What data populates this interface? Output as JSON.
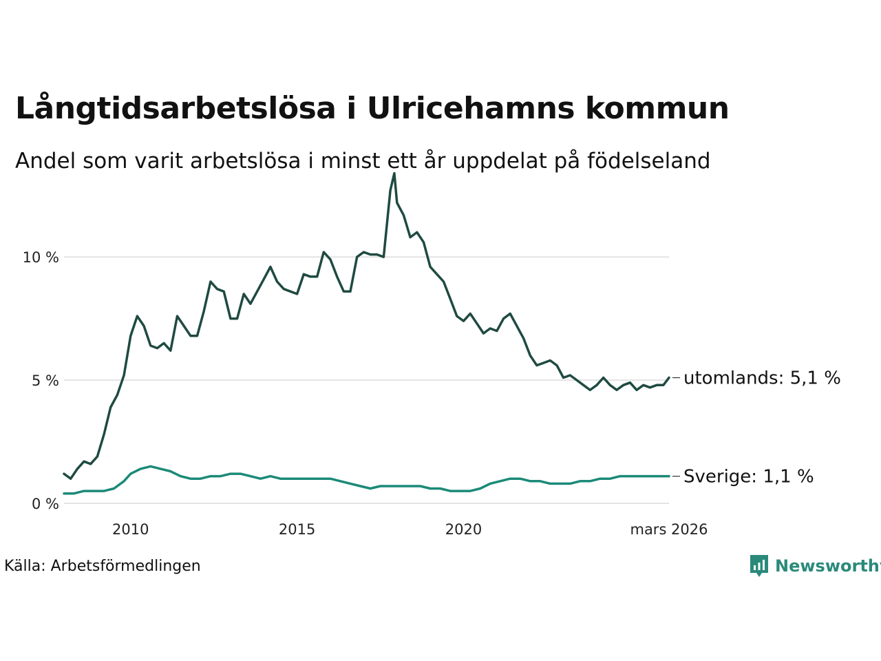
{
  "chart_data": {
    "type": "line",
    "title": "Långtidsarbetslösa i Ulricehamns kommun",
    "subtitle": "Andel som varit arbetslösa i minst ett år uppdelat på födelseland",
    "xlabel": "",
    "ylabel": "",
    "x_range": [
      2008.0,
      2026.17
    ],
    "ylim": [
      0,
      13.5
    ],
    "x_ticks": [
      {
        "value": 2010,
        "label": "2010"
      },
      {
        "value": 2015,
        "label": "2015"
      },
      {
        "value": 2020,
        "label": "2020"
      },
      {
        "value": 2026.17,
        "label": "mars 2026"
      }
    ],
    "y_ticks": [
      {
        "value": 0,
        "label": "0 %"
      },
      {
        "value": 5,
        "label": "5 %"
      },
      {
        "value": 10,
        "label": "10 %"
      }
    ],
    "grid": "horizontal",
    "series": [
      {
        "name": "utomlands",
        "end_label": "utomlands: 5,1 %",
        "color": "#1f4a41",
        "points": [
          [
            2008.0,
            1.2
          ],
          [
            2008.2,
            1.0
          ],
          [
            2008.4,
            1.4
          ],
          [
            2008.6,
            1.7
          ],
          [
            2008.8,
            1.6
          ],
          [
            2009.0,
            1.9
          ],
          [
            2009.2,
            2.8
          ],
          [
            2009.4,
            3.9
          ],
          [
            2009.6,
            4.4
          ],
          [
            2009.8,
            5.2
          ],
          [
            2010.0,
            6.8
          ],
          [
            2010.2,
            7.6
          ],
          [
            2010.4,
            7.2
          ],
          [
            2010.6,
            6.4
          ],
          [
            2010.8,
            6.3
          ],
          [
            2011.0,
            6.5
          ],
          [
            2011.2,
            6.2
          ],
          [
            2011.4,
            7.6
          ],
          [
            2011.6,
            7.2
          ],
          [
            2011.8,
            6.8
          ],
          [
            2012.0,
            6.8
          ],
          [
            2012.2,
            7.8
          ],
          [
            2012.4,
            9.0
          ],
          [
            2012.6,
            8.7
          ],
          [
            2012.8,
            8.6
          ],
          [
            2013.0,
            7.5
          ],
          [
            2013.2,
            7.5
          ],
          [
            2013.4,
            8.5
          ],
          [
            2013.6,
            8.1
          ],
          [
            2013.8,
            8.6
          ],
          [
            2014.0,
            9.1
          ],
          [
            2014.2,
            9.6
          ],
          [
            2014.4,
            9.0
          ],
          [
            2014.6,
            8.7
          ],
          [
            2014.8,
            8.6
          ],
          [
            2015.0,
            8.5
          ],
          [
            2015.2,
            9.3
          ],
          [
            2015.4,
            9.2
          ],
          [
            2015.6,
            9.2
          ],
          [
            2015.8,
            10.2
          ],
          [
            2016.0,
            9.9
          ],
          [
            2016.2,
            9.2
          ],
          [
            2016.4,
            8.6
          ],
          [
            2016.6,
            8.6
          ],
          [
            2016.8,
            10.0
          ],
          [
            2017.0,
            10.2
          ],
          [
            2017.2,
            10.1
          ],
          [
            2017.4,
            10.1
          ],
          [
            2017.6,
            10.0
          ],
          [
            2017.8,
            12.7
          ],
          [
            2017.92,
            13.4
          ],
          [
            2018.0,
            12.2
          ],
          [
            2018.2,
            11.7
          ],
          [
            2018.4,
            10.8
          ],
          [
            2018.6,
            11.0
          ],
          [
            2018.8,
            10.6
          ],
          [
            2019.0,
            9.6
          ],
          [
            2019.2,
            9.3
          ],
          [
            2019.4,
            9.0
          ],
          [
            2019.6,
            8.3
          ],
          [
            2019.8,
            7.6
          ],
          [
            2020.0,
            7.4
          ],
          [
            2020.2,
            7.7
          ],
          [
            2020.4,
            7.3
          ],
          [
            2020.6,
            6.9
          ],
          [
            2020.8,
            7.1
          ],
          [
            2021.0,
            7.0
          ],
          [
            2021.2,
            7.5
          ],
          [
            2021.4,
            7.7
          ],
          [
            2021.6,
            7.2
          ],
          [
            2021.8,
            6.7
          ],
          [
            2022.0,
            6.0
          ],
          [
            2022.2,
            5.6
          ],
          [
            2022.4,
            5.7
          ],
          [
            2022.6,
            5.8
          ],
          [
            2022.8,
            5.6
          ],
          [
            2023.0,
            5.1
          ],
          [
            2023.2,
            5.2
          ],
          [
            2023.4,
            5.0
          ],
          [
            2023.6,
            4.8
          ],
          [
            2023.8,
            4.6
          ],
          [
            2024.0,
            4.8
          ],
          [
            2024.2,
            5.1
          ],
          [
            2024.4,
            4.8
          ],
          [
            2024.6,
            4.6
          ],
          [
            2024.8,
            4.8
          ],
          [
            2025.0,
            4.9
          ],
          [
            2025.2,
            4.6
          ],
          [
            2025.4,
            4.8
          ],
          [
            2025.6,
            4.7
          ],
          [
            2025.8,
            4.8
          ],
          [
            2026.0,
            4.8
          ],
          [
            2026.17,
            5.1
          ]
        ]
      },
      {
        "name": "Sverige",
        "end_label": "Sverige: 1,1 %",
        "color": "#1b8a78",
        "points": [
          [
            2008.0,
            0.4
          ],
          [
            2008.3,
            0.4
          ],
          [
            2008.6,
            0.5
          ],
          [
            2008.9,
            0.5
          ],
          [
            2009.2,
            0.5
          ],
          [
            2009.5,
            0.6
          ],
          [
            2009.8,
            0.9
          ],
          [
            2010.0,
            1.2
          ],
          [
            2010.3,
            1.4
          ],
          [
            2010.6,
            1.5
          ],
          [
            2010.9,
            1.4
          ],
          [
            2011.2,
            1.3
          ],
          [
            2011.5,
            1.1
          ],
          [
            2011.8,
            1.0
          ],
          [
            2012.1,
            1.0
          ],
          [
            2012.4,
            1.1
          ],
          [
            2012.7,
            1.1
          ],
          [
            2013.0,
            1.2
          ],
          [
            2013.3,
            1.2
          ],
          [
            2013.6,
            1.1
          ],
          [
            2013.9,
            1.0
          ],
          [
            2014.2,
            1.1
          ],
          [
            2014.5,
            1.0
          ],
          [
            2014.8,
            1.0
          ],
          [
            2015.1,
            1.0
          ],
          [
            2015.4,
            1.0
          ],
          [
            2015.7,
            1.0
          ],
          [
            2016.0,
            1.0
          ],
          [
            2016.3,
            0.9
          ],
          [
            2016.6,
            0.8
          ],
          [
            2016.9,
            0.7
          ],
          [
            2017.2,
            0.6
          ],
          [
            2017.5,
            0.7
          ],
          [
            2017.8,
            0.7
          ],
          [
            2018.1,
            0.7
          ],
          [
            2018.4,
            0.7
          ],
          [
            2018.7,
            0.7
          ],
          [
            2019.0,
            0.6
          ],
          [
            2019.3,
            0.6
          ],
          [
            2019.6,
            0.5
          ],
          [
            2019.9,
            0.5
          ],
          [
            2020.2,
            0.5
          ],
          [
            2020.5,
            0.6
          ],
          [
            2020.8,
            0.8
          ],
          [
            2021.1,
            0.9
          ],
          [
            2021.4,
            1.0
          ],
          [
            2021.7,
            1.0
          ],
          [
            2022.0,
            0.9
          ],
          [
            2022.3,
            0.9
          ],
          [
            2022.6,
            0.8
          ],
          [
            2022.9,
            0.8
          ],
          [
            2023.2,
            0.8
          ],
          [
            2023.5,
            0.9
          ],
          [
            2023.8,
            0.9
          ],
          [
            2024.1,
            1.0
          ],
          [
            2024.4,
            1.0
          ],
          [
            2024.7,
            1.1
          ],
          [
            2025.0,
            1.1
          ],
          [
            2025.3,
            1.1
          ],
          [
            2025.6,
            1.1
          ],
          [
            2025.9,
            1.1
          ],
          [
            2026.17,
            1.1
          ]
        ]
      }
    ]
  },
  "footer": {
    "source": "Källa: Arbetsförmedlingen",
    "brand": "Newsworthy",
    "brand_color": "#2a8a7a"
  }
}
